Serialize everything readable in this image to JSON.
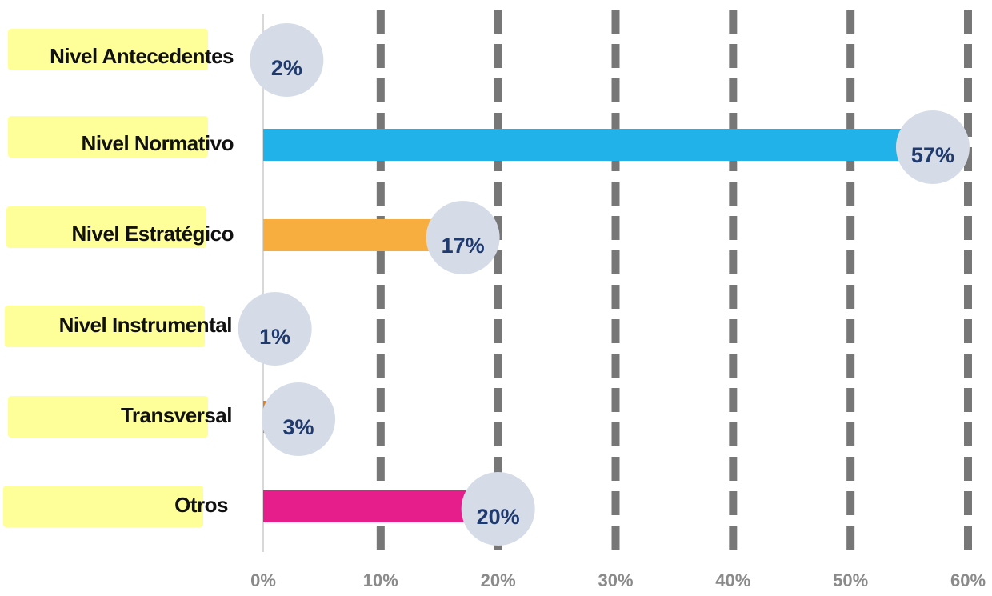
{
  "chart_data": {
    "type": "hbar",
    "categories": [
      "Nivel Antecedentes",
      "Nivel Normativo",
      "Nivel Estratégico",
      "Nivel Instrumental",
      "Transversal",
      "Otros"
    ],
    "values": [
      2,
      57,
      17,
      1,
      3,
      20
    ],
    "value_labels": [
      "2%",
      "57%",
      "17%",
      "1%",
      "3%",
      "20%"
    ],
    "colors": [
      "#8e44ad",
      "#20b2e8",
      "#f7ae3f",
      "#27ae60",
      "#e67e22",
      "#e61e8c"
    ],
    "xlim": [
      0,
      60
    ],
    "xticks": [
      {
        "value": 0,
        "label": "0%"
      },
      {
        "value": 10,
        "label": "10%"
      },
      {
        "value": 20,
        "label": "20%"
      },
      {
        "value": 30,
        "label": "30%"
      },
      {
        "value": 40,
        "label": "40%"
      },
      {
        "value": 50,
        "label": "50%"
      },
      {
        "value": 60,
        "label": "60%"
      }
    ],
    "grid": true
  }
}
